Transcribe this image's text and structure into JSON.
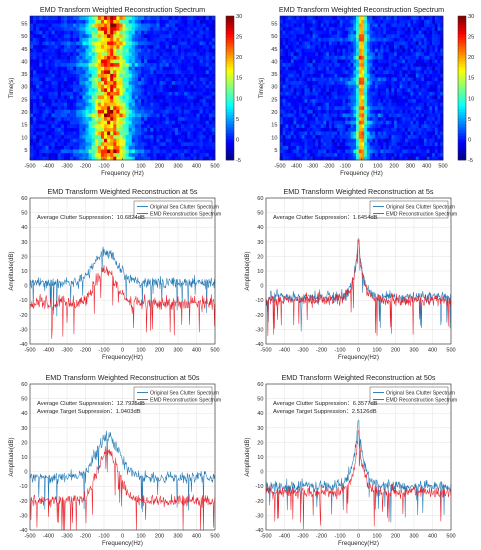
{
  "chart_data": [
    {
      "type": "heatmap",
      "title": "EMD Transform Weighted Reconstruction Spectrum",
      "xlabel": "Frequency (Hz)",
      "ylabel": "Time(s)",
      "xlim": [
        -500,
        500
      ],
      "ylim": [
        1,
        58
      ],
      "xticks": [
        "-500",
        "-400",
        "-300",
        "-200",
        "-100",
        "0",
        "100",
        "200",
        "300",
        "400",
        "500"
      ],
      "yticks": [
        "5",
        "10",
        "15",
        "20",
        "25",
        "30",
        "35",
        "40",
        "45",
        "50",
        "55"
      ],
      "colorbar": {
        "min": -5,
        "max": 30,
        "ticks": [
          "30",
          "25",
          "20",
          "15",
          "10",
          "5",
          "0",
          "-5"
        ]
      },
      "colormap": "jet",
      "energy_center_hz": -70,
      "energy_band_hz": [
        -170,
        20
      ],
      "peak_level": 28,
      "background_level": 0
    },
    {
      "type": "heatmap",
      "title": "EMD Transform Weighted Reconstruction Spectrum",
      "xlabel": "Frequency (Hz)",
      "ylabel": "Time(s)",
      "xlim": [
        -500,
        500
      ],
      "ylim": [
        1,
        58
      ],
      "xticks": [
        "-500",
        "-400",
        "-300",
        "-200",
        "-100",
        "0",
        "100",
        "200",
        "300",
        "400",
        "500"
      ],
      "yticks": [
        "5",
        "10",
        "15",
        "20",
        "25",
        "30",
        "35",
        "40",
        "45",
        "50",
        "55"
      ],
      "colorbar": {
        "min": -5,
        "max": 30,
        "ticks": [
          "30",
          "25",
          "20",
          "15",
          "10",
          "5",
          "0",
          "-5"
        ]
      },
      "colormap": "jet",
      "energy_center_hz": 0,
      "energy_band_hz": [
        -30,
        30
      ],
      "peak_level": 30,
      "background_level": 0
    },
    {
      "type": "line",
      "title": "EMD Transform Weighted Reconstruction at 5s",
      "xlabel": "Frequency(Hz)",
      "ylabel": "Amplitude(dB)",
      "xlim": [
        -500,
        500
      ],
      "ylim": [
        -40,
        60
      ],
      "xticks": [
        "-500",
        "-400",
        "-300",
        "-200",
        "-100",
        "0",
        "100",
        "200",
        "300",
        "400",
        "500"
      ],
      "yticks": [
        "60",
        "50",
        "40",
        "30",
        "20",
        "10",
        "0",
        "-10",
        "-20",
        "-30",
        "-40"
      ],
      "grid": true,
      "legend_position": "top-right",
      "annotations": [
        "Average Clutter Suppression：10.6824dB"
      ],
      "series": [
        {
          "name": "Original Sea Clutter Spectrum",
          "color": "#1f77b4",
          "shape": "hump",
          "center_hz": -90,
          "width_hz": 90,
          "peak_db": 23,
          "base_db": 2,
          "noise_db": 4
        },
        {
          "name": "EMD Reconstruction Spectrum",
          "color": "#e8212b",
          "shape": "hump",
          "center_hz": -90,
          "width_hz": 80,
          "peak_db": 10,
          "base_db": -12,
          "noise_db": 5
        }
      ]
    },
    {
      "type": "line",
      "title": "EMD Transform Weighted Reconstruction at 5s",
      "xlabel": "Frequency(Hz)",
      "ylabel": "Amplitude(dB)",
      "xlim": [
        -500,
        500
      ],
      "ylim": [
        -40,
        60
      ],
      "xticks": [
        "-500",
        "-400",
        "-300",
        "-200",
        "-100",
        "0",
        "100",
        "200",
        "300",
        "400",
        "500"
      ],
      "yticks": [
        "60",
        "50",
        "40",
        "30",
        "20",
        "10",
        "0",
        "-10",
        "-20",
        "-30",
        "-40"
      ],
      "grid": true,
      "legend_position": "top-right",
      "annotations": [
        "Average Clutter Suppression：1.6454dB"
      ],
      "series": [
        {
          "name": "Original Sea Clutter Spectrum",
          "color": "#1f77b4",
          "shape": "spike",
          "center_hz": 0,
          "width_hz": 25,
          "peak_db": 32,
          "base_db": -8,
          "noise_db": 4
        },
        {
          "name": "EMD Reconstruction Spectrum",
          "color": "#e8212b",
          "shape": "spike",
          "center_hz": 0,
          "width_hz": 25,
          "peak_db": 31,
          "base_db": -10,
          "noise_db": 4
        }
      ]
    },
    {
      "type": "line",
      "title": "EMD Transform Weighted Reconstruction at 50s",
      "xlabel": "Frequency(Hz)",
      "ylabel": "Amplitude(dB)",
      "xlim": [
        -500,
        500
      ],
      "ylim": [
        -40,
        60
      ],
      "xticks": [
        "-500",
        "-400",
        "-300",
        "-200",
        "-100",
        "0",
        "100",
        "200",
        "300",
        "400",
        "500"
      ],
      "yticks": [
        "60",
        "50",
        "40",
        "30",
        "20",
        "10",
        "0",
        "-10",
        "-20",
        "-30",
        "-40"
      ],
      "grid": true,
      "legend_position": "top-right",
      "annotations": [
        "Average Clutter Suppression：12.7925dB",
        "Average Target Suppression：1.0403dB"
      ],
      "series": [
        {
          "name": "Original Sea Clutter Spectrum",
          "color": "#1f77b4",
          "shape": "hump",
          "center_hz": -80,
          "width_hz": 90,
          "peak_db": 24,
          "base_db": -4,
          "noise_db": 4
        },
        {
          "name": "EMD Reconstruction Spectrum",
          "color": "#e8212b",
          "shape": "hump",
          "center_hz": -80,
          "width_hz": 80,
          "peak_db": 14,
          "base_db": -20,
          "noise_db": 4
        }
      ]
    },
    {
      "type": "line",
      "title": "EMD Transform Weighted Reconstruction at 50s",
      "xlabel": "Frequency(Hz)",
      "ylabel": "Amplitude(dB)",
      "xlim": [
        -500,
        500
      ],
      "ylim": [
        -40,
        60
      ],
      "xticks": [
        "-500",
        "-400",
        "-300",
        "-200",
        "-100",
        "0",
        "100",
        "200",
        "300",
        "400",
        "500"
      ],
      "yticks": [
        "60",
        "50",
        "40",
        "30",
        "20",
        "10",
        "0",
        "-10",
        "-20",
        "-30",
        "-40"
      ],
      "grid": true,
      "legend_position": "top-right",
      "annotations": [
        "Average Clutter Suppression：6.3577dB",
        "Average Target Suppression：2.5126dB"
      ],
      "series": [
        {
          "name": "Original Sea Clutter Spectrum",
          "color": "#1f77b4",
          "shape": "spike",
          "center_hz": 0,
          "width_hz": 30,
          "peak_db": 35,
          "base_db": -10,
          "noise_db": 4
        },
        {
          "name": "EMD Reconstruction Spectrum",
          "color": "#e8212b",
          "shape": "spike",
          "center_hz": 0,
          "width_hz": 25,
          "peak_db": 28,
          "base_db": -14,
          "noise_db": 4
        }
      ]
    }
  ]
}
